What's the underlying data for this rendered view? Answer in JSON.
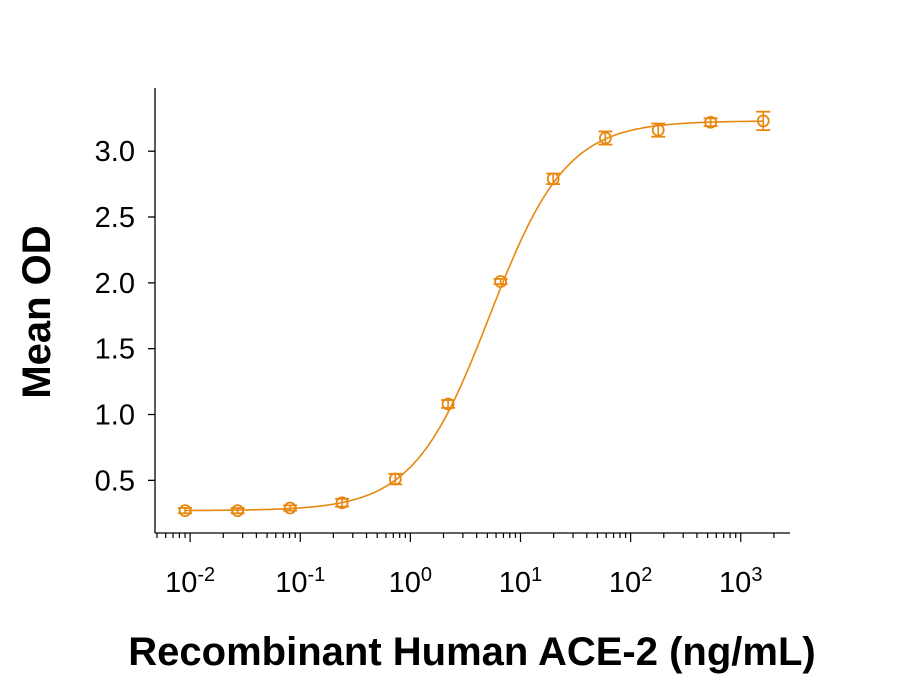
{
  "chart_data": {
    "type": "scatter",
    "title": "",
    "xlabel": "Recombinant Human ACE-2 (ng/mL)",
    "ylabel": "Mean OD",
    "xscale": "log",
    "xlim": [
      0.0048,
      2800
    ],
    "ylim": [
      0.1,
      3.48
    ],
    "x_ticks": [
      {
        "value": 0.01,
        "base": "10",
        "exp": "-2"
      },
      {
        "value": 0.1,
        "base": "10",
        "exp": "-1"
      },
      {
        "value": 1,
        "base": "10",
        "exp": "0"
      },
      {
        "value": 10,
        "base": "10",
        "exp": "1"
      },
      {
        "value": 100,
        "base": "10",
        "exp": "2"
      },
      {
        "value": 1000,
        "base": "10",
        "exp": "3"
      }
    ],
    "y_ticks": [
      {
        "value": 0.5,
        "label": "0.5"
      },
      {
        "value": 1.0,
        "label": "1.0"
      },
      {
        "value": 1.5,
        "label": "1.5"
      },
      {
        "value": 2.0,
        "label": "2.0"
      },
      {
        "value": 2.5,
        "label": "2.5"
      },
      {
        "value": 3.0,
        "label": "3.0"
      }
    ],
    "grid": false,
    "legend": "none",
    "color": "#E8870E",
    "series": [
      {
        "x": [
          0.009,
          0.027,
          0.081,
          0.24,
          0.73,
          2.2,
          6.6,
          19.8,
          59,
          178,
          533,
          1600
        ],
        "y": [
          0.27,
          0.27,
          0.29,
          0.33,
          0.51,
          1.08,
          2.01,
          2.79,
          3.1,
          3.16,
          3.22,
          3.23
        ],
        "error": [
          0.02,
          0.02,
          0.02,
          0.03,
          0.04,
          0.03,
          0.02,
          0.04,
          0.05,
          0.05,
          0.03,
          0.07
        ],
        "fit": "four-parameter logistic"
      }
    ]
  }
}
